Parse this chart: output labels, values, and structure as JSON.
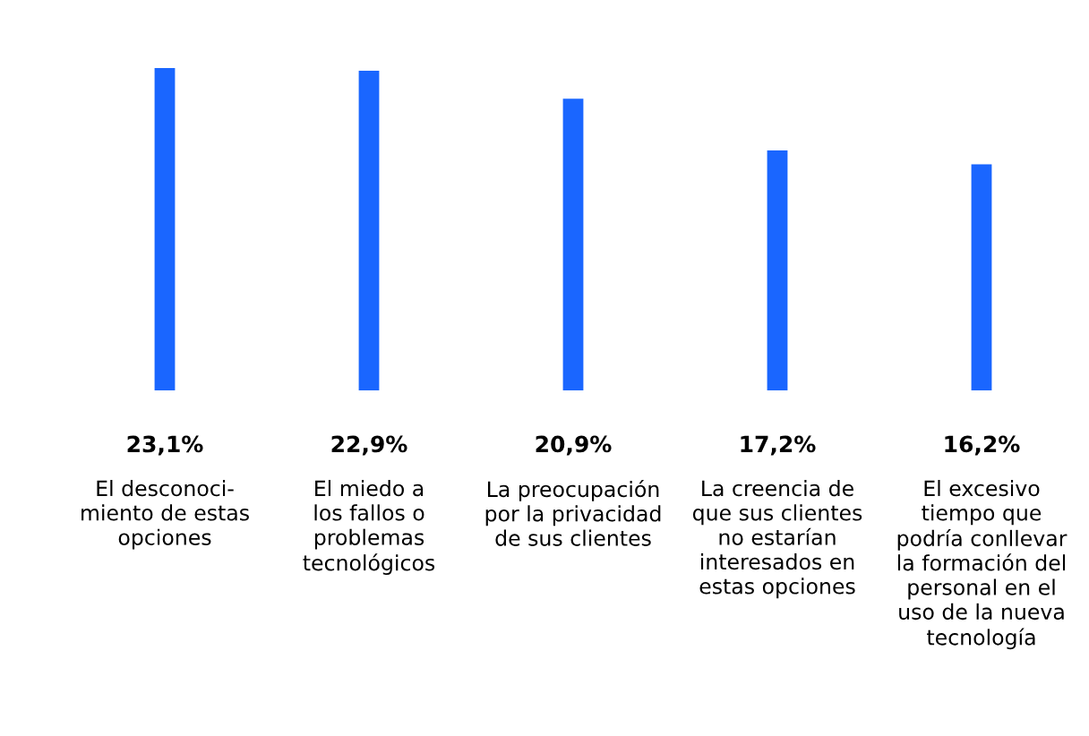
{
  "chart_data": {
    "type": "bar",
    "categories": [
      "El desconoci-\nmiento de estas\nopciones",
      "El miedo a\nlos fallos o\nproblemas\ntecnológicos",
      "La preocupación\npor la privacidad\nde sus clientes",
      "La creencia de\nque sus clientes\nno estarían\ninteresados en\nestas opciones",
      "El excesivo\ntiempo que\npodría conllevar\nla formación del\npersonal en el\nuso de la nueva\ntecnología"
    ],
    "values": [
      23.1,
      22.9,
      20.9,
      17.2,
      16.2
    ],
    "value_labels": [
      "23,1%",
      "22,9%",
      "20,9%",
      "17,2%",
      "16,2%"
    ],
    "color": "#1a66ff",
    "grid": false,
    "legend": false
  }
}
